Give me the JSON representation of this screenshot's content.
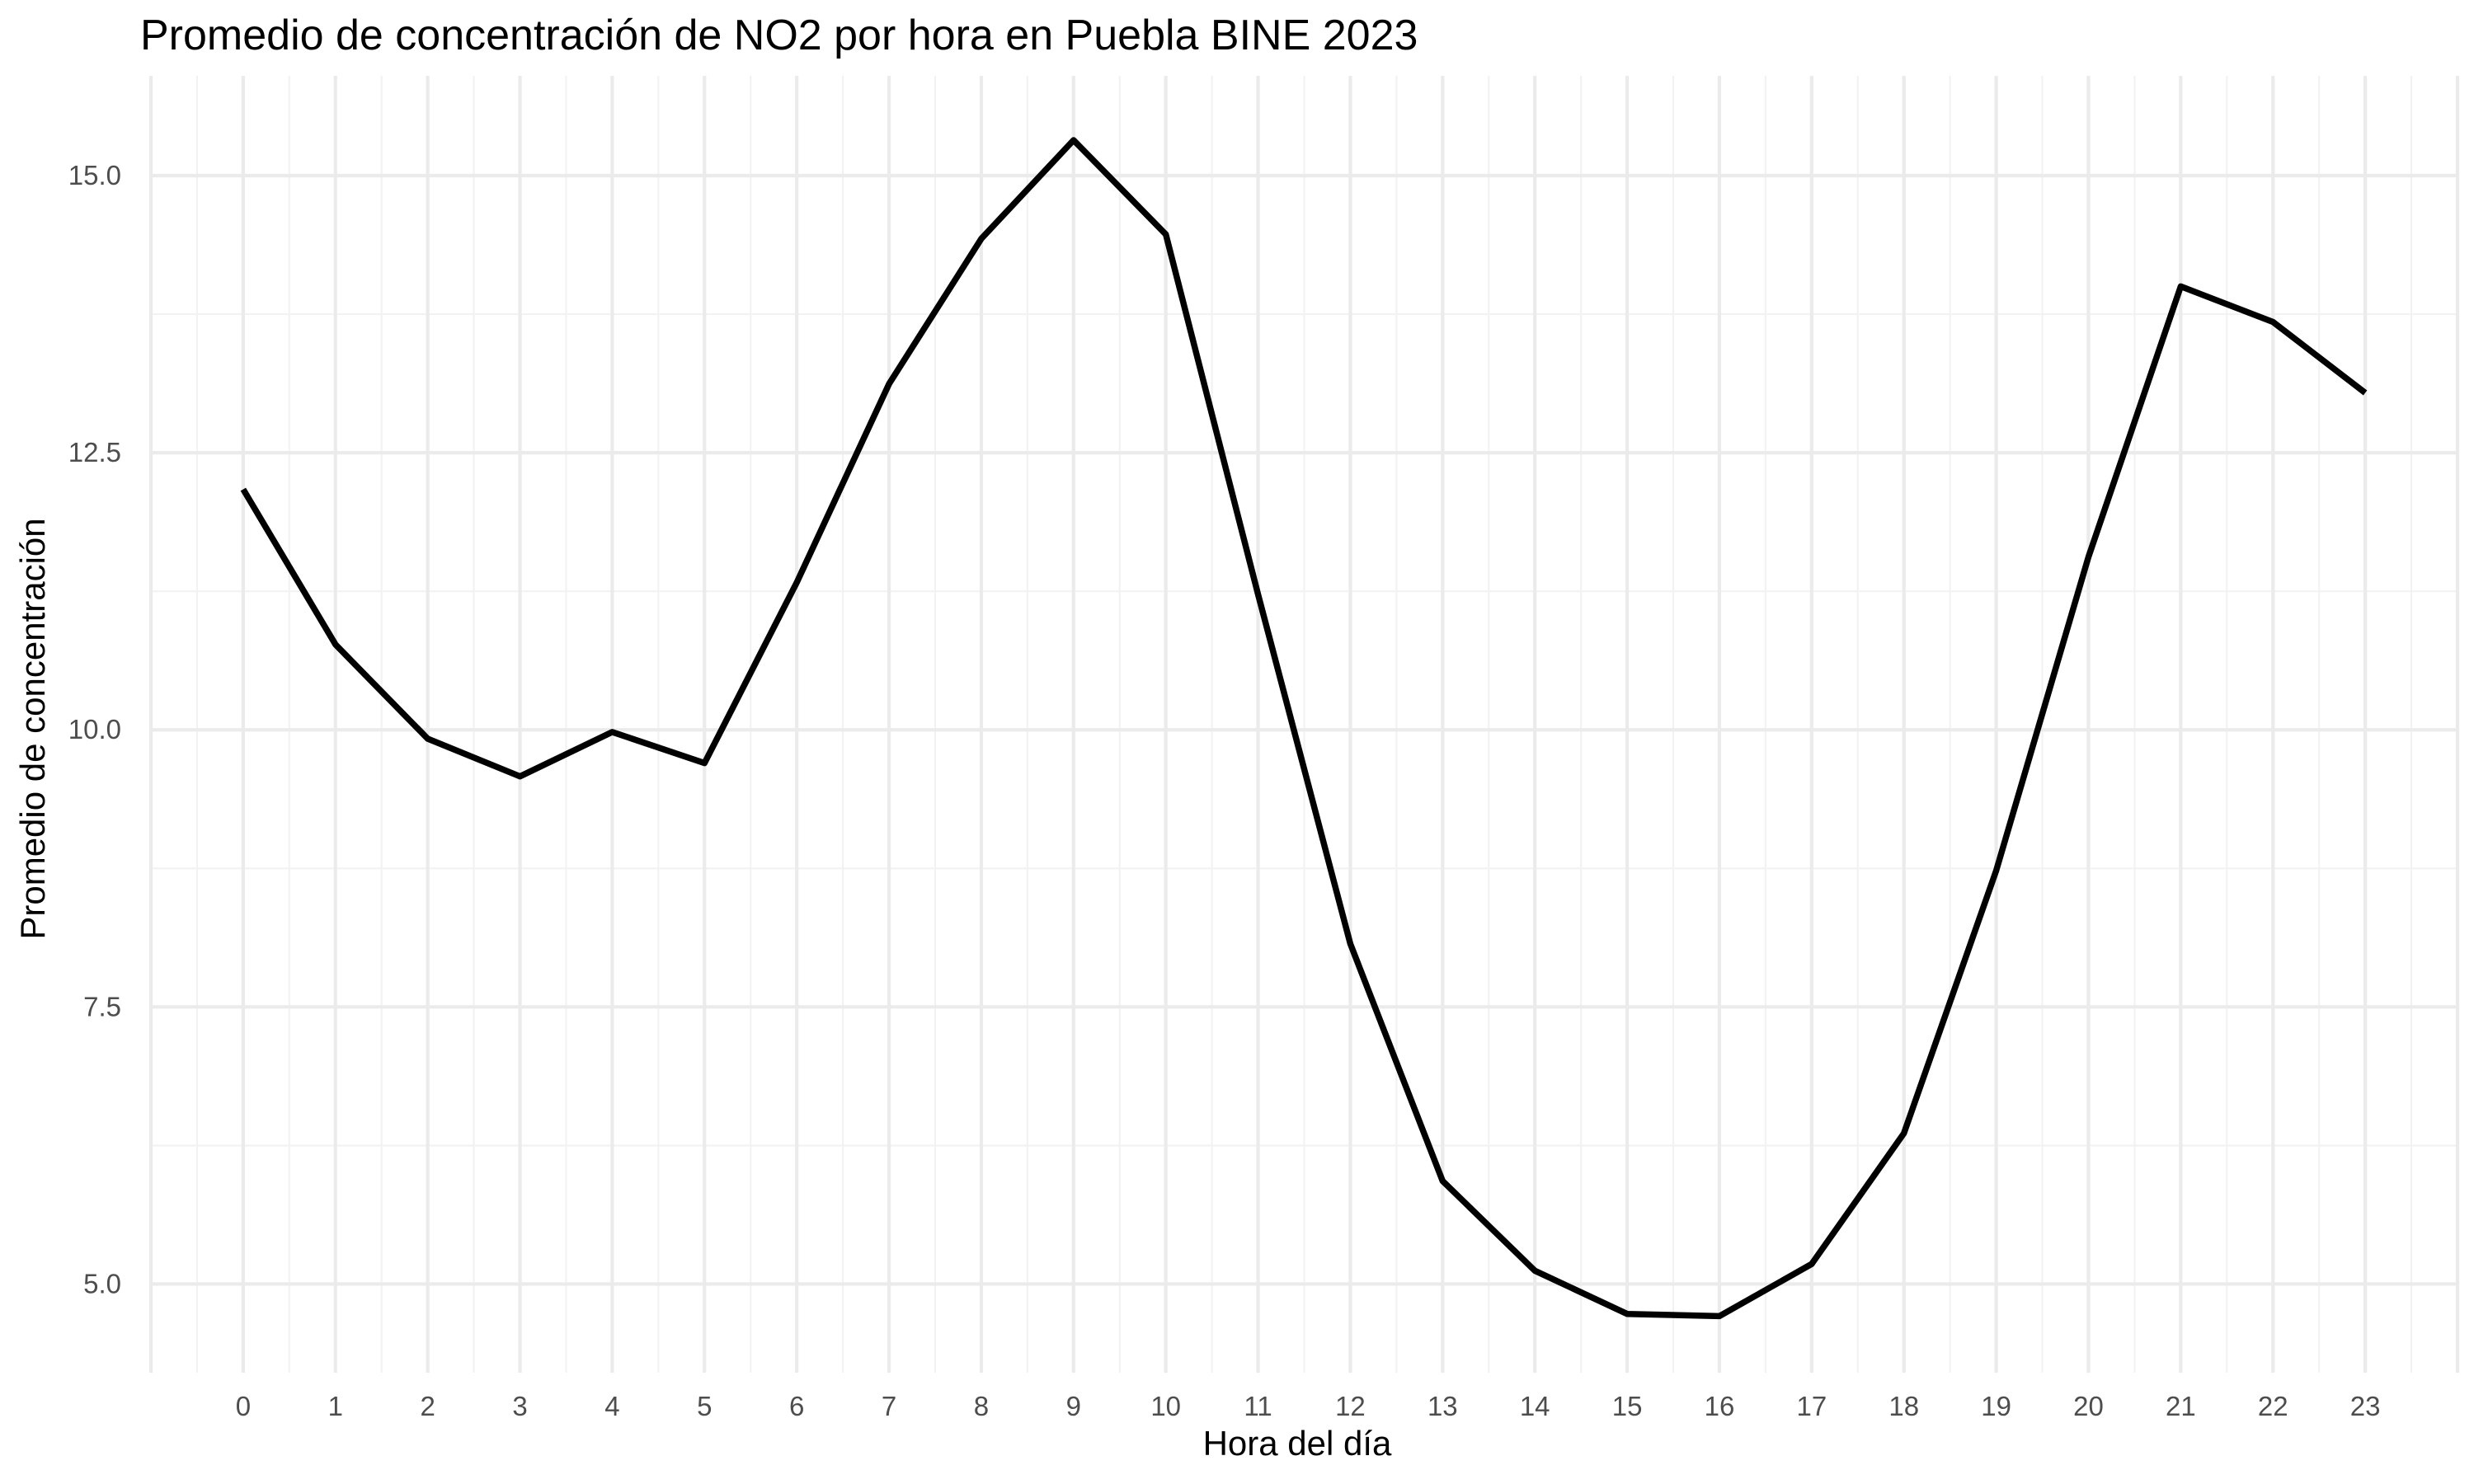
{
  "chart_data": {
    "type": "line",
    "title": "Promedio de concentración de NO2 por hora en Puebla BINE 2023",
    "xlabel": "Hora del día",
    "ylabel": "Promedio de concentración",
    "x": [
      0,
      1,
      2,
      3,
      4,
      5,
      6,
      7,
      8,
      9,
      10,
      11,
      12,
      13,
      14,
      15,
      16,
      17,
      18,
      19,
      20,
      21,
      22,
      23
    ],
    "x_tick_labels": [
      "0",
      "1",
      "2",
      "3",
      "4",
      "5",
      "6",
      "7",
      "8",
      "9",
      "10",
      "11",
      "12",
      "13",
      "14",
      "15",
      "16",
      "17",
      "18",
      "19",
      "20",
      "21",
      "22",
      "23"
    ],
    "series": [
      {
        "values": [
          12.17,
          10.77,
          9.92,
          9.58,
          9.98,
          9.7,
          11.33,
          13.12,
          14.43,
          15.32,
          14.47,
          11.22,
          8.07,
          5.93,
          5.12,
          4.73,
          4.71,
          5.18,
          6.36,
          8.73,
          11.56,
          14.0,
          13.68,
          13.04
        ]
      }
    ],
    "y_ticks": [
      5.0,
      7.5,
      10.0,
      12.5,
      15.0
    ],
    "y_tick_labels": [
      "5.0",
      "7.5",
      "10.0",
      "12.5",
      "15.0"
    ],
    "xlim": [
      -1,
      24
    ],
    "ylim": [
      4.2,
      15.9
    ],
    "line_color": "#000000",
    "grid": true,
    "legend": "none"
  }
}
